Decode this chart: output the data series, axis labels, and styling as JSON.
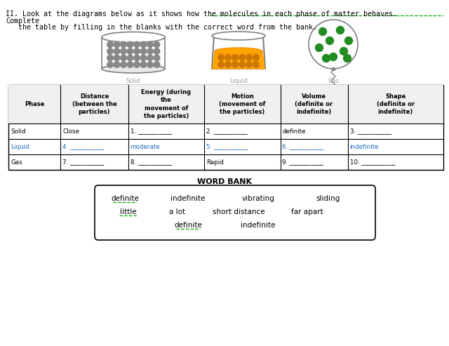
{
  "title_line1": "II. Look at the diagrams below as it shows how the molecules in each phase of matter behaves.",
  "title_line2": "Complete",
  "title_line3": "   the table by filling in the blanks with the correct word from the bank.",
  "table_headers": [
    "Phase",
    "Distance\n(between the\nparticles)",
    "Energy (during\nthe\nmovement of\nthe particles)",
    "Motion\n(movement of\nthe particles)",
    "Volume\n(definite or\nindefinite)",
    "Shape\n(definite or\nindefinite)"
  ],
  "table_rows": [
    [
      "Solid",
      "Close",
      "1. ___________",
      "2. ___________",
      "definite",
      "3. ___________"
    ],
    [
      "Liquid",
      "4. ___________",
      "moderate",
      "5. ___________",
      "6. ___________",
      "indefinite"
    ],
    [
      "Gas",
      "7. ___________",
      "8. ___________",
      "Rapid",
      "9. ___________",
      "10. ___________"
    ]
  ],
  "word_bank_title": "WORD BANK",
  "word_bank_row1": [
    "definite",
    "indefinite",
    "vibrating",
    "sliding"
  ],
  "word_bank_row2": [
    "little",
    "a lot",
    "short distance",
    "far apart"
  ],
  "word_bank_row3": [
    "definite",
    "indefinite"
  ],
  "word_bank_row1_underlined": [
    true,
    false,
    false,
    false
  ],
  "word_bank_row2_underlined": [
    true,
    false,
    false,
    false
  ],
  "word_bank_row3_underlined": [
    true,
    false
  ],
  "bg_color": "#ffffff",
  "text_color": "#000000",
  "underline_color": "#00aa00",
  "liquid_text_color": "#1a6cbf"
}
